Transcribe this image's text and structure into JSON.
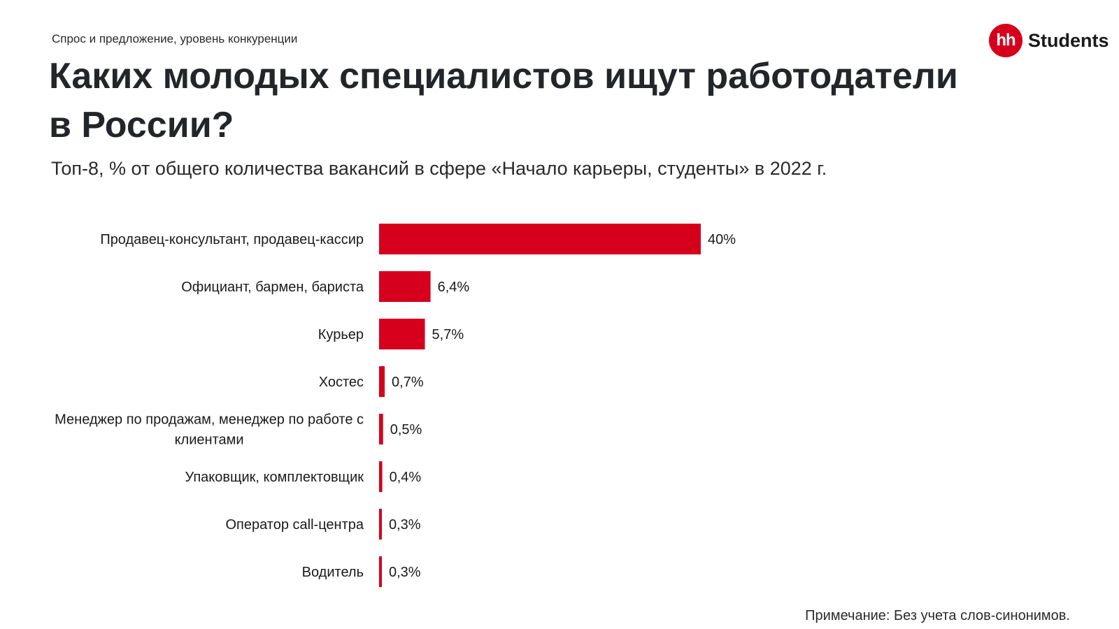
{
  "header": {
    "eyebrow": "Спрос и предложение, уровень конкуренции",
    "title": "Каких молодых специалистов ищут работодатели в России?",
    "subtitle": "Топ-8, % от общего количества вакансий в сфере «Начало карьеры, студенты» в 2022 г."
  },
  "logo": {
    "mark": "hh",
    "text": "Students",
    "color": "#d6001c"
  },
  "footer": {
    "note": "Примечание: Без учета слов-синонимов."
  },
  "chart_data": {
    "type": "bar",
    "orientation": "horizontal",
    "title": "Каких молодых специалистов ищут работодатели в России?",
    "subtitle": "Топ-8, % от общего количества вакансий в сфере «Начало карьеры, студенты» в 2022 г.",
    "categories": [
      "Продавец-консультант, продавец-кассир",
      "Официант, бармен, бариста",
      "Курьер",
      "Хостес",
      "Менеджер по продажам, менеджер по работе с клиентами",
      "Упаковщик, комплектовщик",
      "Оператор call-центра",
      "Водитель"
    ],
    "values": [
      40,
      6.4,
      5.7,
      0.7,
      0.5,
      0.4,
      0.3,
      0.3
    ],
    "value_labels": [
      "40%",
      "6,4%",
      "5,7%",
      "0,7%",
      "0,5%",
      "0,4%",
      "0,3%",
      "0,3%"
    ],
    "unit": "%",
    "bar_color": "#d6001c",
    "xlim": [
      0,
      40
    ],
    "grid": false,
    "legend": "none"
  }
}
